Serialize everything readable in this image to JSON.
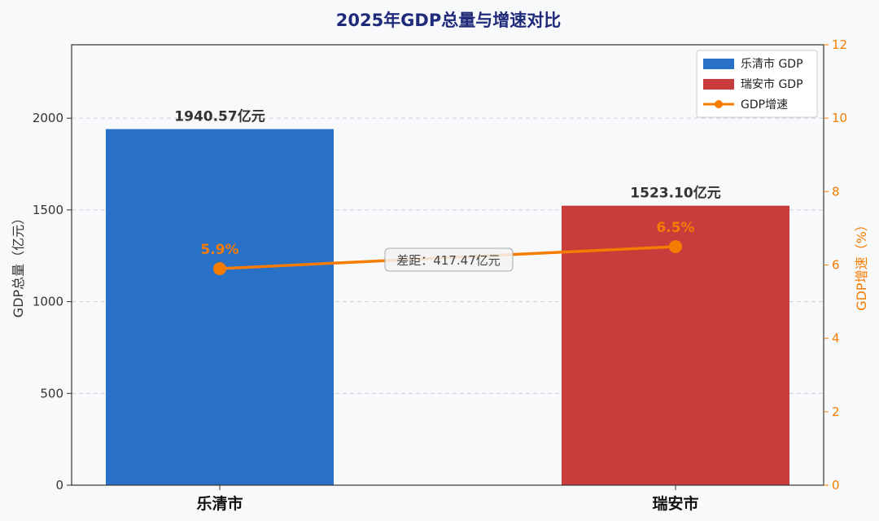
{
  "chart_data": {
    "type": "bar",
    "title": "2025年GDP总量与增速对比",
    "categories": [
      "乐清市",
      "瑞安市"
    ],
    "series": [
      {
        "name": "乐清市 GDP",
        "values": [
          1940.57,
          null
        ],
        "color": "#2970c7",
        "axis": "left",
        "kind": "bar"
      },
      {
        "name": "瑞安市 GDP",
        "values": [
          null,
          1523.1
        ],
        "color": "#c83c3c",
        "axis": "left",
        "kind": "bar"
      },
      {
        "name": "GDP增速",
        "values": [
          5.9,
          6.5
        ],
        "color": "#f57c00",
        "axis": "right",
        "kind": "line"
      }
    ],
    "bar_labels": [
      "1940.57亿元",
      "1523.10亿元"
    ],
    "rate_labels": [
      "5.9%",
      "6.5%"
    ],
    "ylabel": "GDP总量（亿元）",
    "ylabel_right": "GDP增速（%）",
    "ylim": [
      0,
      2400
    ],
    "ylim_right": [
      0,
      12
    ],
    "yticks": [
      "0",
      "500",
      "1000",
      "1500",
      "2000"
    ],
    "yticks_right": [
      "0",
      "2",
      "4",
      "6",
      "8",
      "10",
      "12"
    ],
    "annotation": "差距：417.47亿元",
    "grid": true,
    "legend_position": "top-right"
  }
}
